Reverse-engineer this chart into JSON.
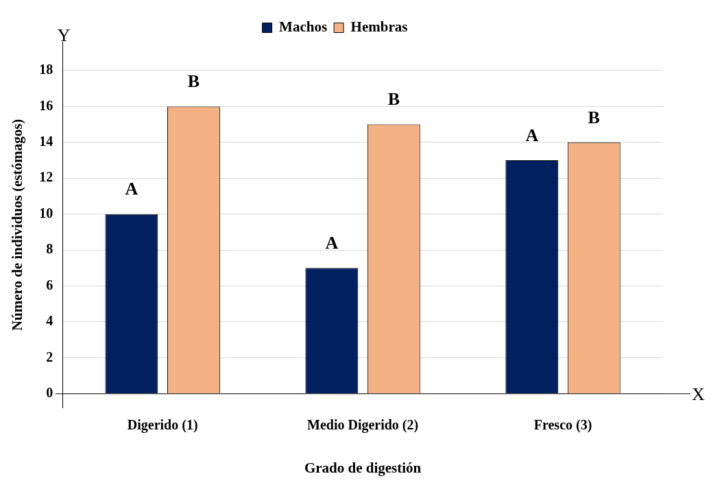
{
  "chart_data": {
    "type": "bar",
    "xlabel": "Grado de digestión",
    "ylabel": "Número de individuos (estómagos)",
    "categories": [
      "Digerido (1)",
      "Medio Digerido (2)",
      "Fresco (3)"
    ],
    "series": [
      {
        "name": "Machos",
        "color": "#002060",
        "values": [
          10,
          7,
          13
        ]
      },
      {
        "name": "Hembras",
        "color": "#f4b183",
        "values": [
          16,
          15,
          14
        ]
      }
    ],
    "ylim": [
      -0.8,
      19.6
    ],
    "yticks": [
      0,
      2,
      4,
      6,
      8,
      10,
      12,
      14,
      16,
      18
    ],
    "grid": "y",
    "legend": "top",
    "annotations": [
      "A",
      "B",
      "A",
      "B",
      "A",
      "B",
      "Y",
      "X"
    ]
  }
}
